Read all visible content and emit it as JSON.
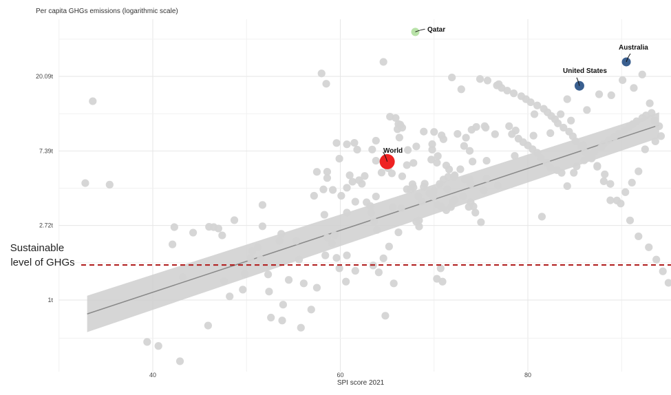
{
  "chart_data": {
    "type": "scatter",
    "title": "",
    "ylabel": "Per capita GHGs emissions (logarithmic scale)",
    "xlabel": "SPI score 2021",
    "x_ticks": [
      40,
      60,
      80
    ],
    "y_ticks": [
      1,
      2.72,
      7.39,
      20.09
    ],
    "y_tick_labels": [
      "1t",
      "2.72t",
      "7.39t",
      "20.09t"
    ],
    "xlim": [
      30,
      95
    ],
    "ylim": [
      0.34,
      50
    ],
    "y_scale": "log",
    "grid": true,
    "reference_line": {
      "value": 1.6,
      "label_line1": "Sustainable",
      "label_line2": "level of GHGs",
      "color": "#b22222"
    },
    "trend": {
      "x": [
        33,
        94
      ],
      "y": [
        0.83,
        10.45
      ],
      "band_lower": [
        0.65,
        8.8
      ],
      "band_upper": [
        1.06,
        12.4
      ],
      "band_color": "#cfcfcf",
      "line_color": "#888888"
    },
    "highlighted": [
      {
        "label": "World",
        "x": 65,
        "y": 6.4,
        "color": "#ee2222",
        "size": 11
      },
      {
        "label": "Qatar",
        "x": 68,
        "y": 36.5,
        "color": "#b8e2a8",
        "size": 6
      },
      {
        "label": "United States",
        "x": 85.5,
        "y": 17.7,
        "color": "#3a5f8f",
        "size": 7
      },
      {
        "label": "Australia",
        "x": 90.5,
        "y": 24.4,
        "color": "#3a5f8f",
        "size": 6.5
      }
    ],
    "point_color": "#d4d4d4",
    "points": [
      [
        33.6,
        14.4
      ],
      [
        32.8,
        4.8
      ],
      [
        35.4,
        4.7
      ],
      [
        39.4,
        0.57
      ],
      [
        40.6,
        0.54
      ],
      [
        42.9,
        0.44
      ],
      [
        43.2,
        1.36
      ],
      [
        44.3,
        2.47
      ],
      [
        42.3,
        2.66
      ],
      [
        42.1,
        2.11
      ],
      [
        46.0,
        2.67
      ],
      [
        46.5,
        2.66
      ],
      [
        48.7,
        2.92
      ],
      [
        47.0,
        2.61
      ],
      [
        47.4,
        2.38
      ],
      [
        47.6,
        1.29
      ],
      [
        45.9,
        0.71
      ],
      [
        48.2,
        1.05
      ],
      [
        49.8,
        1.42
      ],
      [
        49.6,
        1.15
      ],
      [
        50.4,
        1.75
      ],
      [
        50.6,
        1.93
      ],
      [
        51.5,
        1.73
      ],
      [
        51.2,
        2.03
      ],
      [
        51.7,
        2.69
      ],
      [
        51.7,
        3.58
      ],
      [
        52.3,
        1.41
      ],
      [
        52.4,
        1.12
      ],
      [
        53.7,
        2.43
      ],
      [
        53.5,
        2.21
      ],
      [
        52.6,
        0.79
      ],
      [
        53.9,
        0.94
      ],
      [
        53.8,
        0.76
      ],
      [
        54.5,
        1.31
      ],
      [
        55.3,
        2.21
      ],
      [
        55.6,
        1.72
      ],
      [
        55.8,
        0.69
      ],
      [
        56.1,
        1.25
      ],
      [
        56.9,
        0.88
      ],
      [
        57.5,
        1.18
      ],
      [
        57.2,
        4.05
      ],
      [
        58.6,
        5.14
      ],
      [
        59.2,
        4.38
      ],
      [
        58.6,
        2.31
      ],
      [
        59.1,
        2.14
      ],
      [
        59.6,
        1.76
      ],
      [
        59.4,
        2.39
      ],
      [
        60.7,
        3.23
      ],
      [
        58.3,
        3.14
      ],
      [
        60.7,
        1.82
      ],
      [
        58.4,
        1.82
      ],
      [
        59.9,
        1.53
      ],
      [
        60.6,
        1.28
      ],
      [
        61.6,
        1.48
      ],
      [
        63.9,
        2.56
      ],
      [
        63.6,
        2.86
      ],
      [
        63.3,
        3.22
      ],
      [
        63.5,
        1.59
      ],
      [
        64.6,
        1.75
      ],
      [
        64.8,
        0.81
      ],
      [
        64.1,
        1.45
      ],
      [
        65.2,
        2.05
      ],
      [
        65.6,
        3.47
      ],
      [
        66.2,
        2.48
      ],
      [
        66.5,
        3.43
      ],
      [
        67.1,
        4.42
      ],
      [
        67.2,
        7.48
      ],
      [
        66.2,
        10.6
      ],
      [
        66.3,
        8.84
      ],
      [
        66.1,
        9.89
      ],
      [
        65.7,
        1.25
      ],
      [
        67.5,
        4.42
      ],
      [
        68.1,
        2.86
      ],
      [
        68.4,
        2.91
      ],
      [
        68.4,
        2.68
      ],
      [
        68.7,
        3.74
      ],
      [
        68.3,
        4.03
      ],
      [
        69.0,
        4.76
      ],
      [
        70.0,
        4.32
      ],
      [
        70.4,
        3.59
      ],
      [
        70.7,
        3.51
      ],
      [
        70.7,
        1.53
      ],
      [
        70.3,
        1.33
      ],
      [
        70.9,
        1.28
      ],
      [
        71.3,
        3.34
      ],
      [
        71.8,
        3.48
      ],
      [
        72.0,
        3.73
      ],
      [
        71.4,
        4.42
      ],
      [
        72.2,
        3.83
      ],
      [
        73.1,
        4.03
      ],
      [
        73.7,
        3.49
      ],
      [
        73.9,
        4.74
      ],
      [
        73.9,
        3.71
      ],
      [
        74.2,
        3.51
      ],
      [
        74.4,
        3.23
      ],
      [
        73.3,
        5.04
      ],
      [
        72.8,
        5.78
      ],
      [
        70.4,
        6.9
      ],
      [
        71.3,
        6.08
      ],
      [
        71.6,
        5.77
      ],
      [
        72.1,
        5.24
      ],
      [
        73.8,
        5.06
      ],
      [
        74.1,
        6.41
      ],
      [
        75.6,
        6.48
      ],
      [
        75.0,
        2.84
      ],
      [
        75.3,
        4.35
      ],
      [
        76.8,
        4.64
      ],
      [
        75.6,
        5.11
      ],
      [
        73.2,
        7.9
      ],
      [
        73.8,
        7.4
      ],
      [
        75.5,
        10.1
      ],
      [
        76.5,
        9.25
      ],
      [
        75.4,
        10.3
      ],
      [
        74.9,
        19.4
      ],
      [
        76.9,
        18.1
      ],
      [
        72.9,
        16.9
      ],
      [
        71.9,
        19.8
      ],
      [
        69.8,
        8.09
      ],
      [
        70.8,
        9.11
      ],
      [
        70.3,
        6.31
      ],
      [
        69.7,
        6.58
      ],
      [
        69.8,
        7.52
      ],
      [
        68.9,
        9.58
      ],
      [
        68.1,
        7.85
      ],
      [
        67.8,
        6.29
      ],
      [
        67.1,
        6.11
      ],
      [
        66.6,
        10.1
      ],
      [
        66.4,
        10.5
      ],
      [
        65.9,
        11.5
      ],
      [
        65.3,
        11.7
      ],
      [
        64.6,
        24.4
      ],
      [
        63.8,
        8.48
      ],
      [
        63.4,
        7.53
      ],
      [
        63.8,
        6.48
      ],
      [
        61.8,
        7.52
      ],
      [
        61.5,
        8.24
      ],
      [
        59.6,
        8.22
      ],
      [
        58.5,
        18.2
      ],
      [
        58.0,
        20.9
      ],
      [
        60.7,
        8.08
      ],
      [
        59.9,
        6.66
      ],
      [
        58.2,
        4.41
      ],
      [
        57.5,
        5.58
      ],
      [
        58.6,
        5.59
      ],
      [
        61.0,
        5.33
      ],
      [
        61.3,
        4.89
      ],
      [
        62.3,
        4.76
      ],
      [
        62.0,
        4.99
      ],
      [
        62.6,
        5.28
      ],
      [
        60.7,
        4.51
      ],
      [
        60.1,
        4.05
      ],
      [
        61.6,
        3.74
      ],
      [
        62.8,
        3.71
      ],
      [
        63.2,
        3.53
      ],
      [
        63.8,
        4.01
      ],
      [
        64.4,
        5.53
      ],
      [
        65.1,
        5.86
      ],
      [
        65.5,
        5.47
      ],
      [
        66.6,
        5.26
      ],
      [
        67.7,
        4.73
      ],
      [
        67.8,
        4.53
      ],
      [
        68.9,
        4.56
      ],
      [
        69.5,
        4.2
      ],
      [
        69.9,
        4.01
      ],
      [
        70.6,
        4.75
      ],
      [
        71.0,
        5.04
      ],
      [
        71.5,
        5.22
      ],
      [
        72.2,
        5.33
      ],
      [
        70.0,
        9.54
      ],
      [
        71.0,
        8.65
      ],
      [
        72.5,
        9.29
      ],
      [
        73.4,
        8.83
      ],
      [
        74.0,
        9.82
      ],
      [
        74.5,
        10.2
      ],
      [
        75.7,
        19.0
      ],
      [
        78.0,
        10.3
      ],
      [
        78.7,
        9.72
      ],
      [
        78.3,
        9.26
      ],
      [
        79.0,
        8.71
      ],
      [
        79.5,
        8.31
      ],
      [
        80.0,
        7.96
      ],
      [
        80.5,
        7.56
      ],
      [
        81.0,
        7.21
      ],
      [
        81.4,
        6.71
      ],
      [
        82.0,
        6.31
      ],
      [
        82.4,
        5.91
      ],
      [
        83.1,
        5.71
      ],
      [
        83.6,
        5.51
      ],
      [
        84.2,
        4.61
      ],
      [
        84.9,
        5.51
      ],
      [
        85.2,
        6.01
      ],
      [
        86.0,
        6.51
      ],
      [
        86.5,
        6.91
      ],
      [
        87.1,
        7.31
      ],
      [
        87.8,
        7.71
      ],
      [
        88.1,
        8.11
      ],
      [
        88.6,
        8.51
      ],
      [
        89.2,
        8.91
      ],
      [
        89.7,
        9.31
      ],
      [
        90.3,
        9.71
      ],
      [
        90.8,
        10.2
      ],
      [
        91.2,
        10.6
      ],
      [
        91.6,
        11.0
      ],
      [
        92.2,
        11.5
      ],
      [
        92.6,
        11.9
      ],
      [
        93.2,
        12.3
      ],
      [
        93.5,
        11.1
      ],
      [
        94.0,
        10.3
      ],
      [
        94.2,
        9.02
      ],
      [
        93.6,
        8.4
      ],
      [
        92.5,
        7.55
      ],
      [
        91.8,
        5.62
      ],
      [
        91.1,
        4.83
      ],
      [
        90.4,
        4.25
      ],
      [
        89.5,
        3.8
      ],
      [
        88.8,
        4.75
      ],
      [
        88.2,
        5.4
      ],
      [
        87.4,
        6.05
      ],
      [
        86.8,
        6.68
      ],
      [
        86.1,
        7.27
      ],
      [
        85.7,
        7.83
      ],
      [
        85.1,
        8.41
      ],
      [
        84.8,
        8.99
      ],
      [
        84.4,
        9.57
      ],
      [
        83.8,
        10.1
      ],
      [
        83.2,
        10.7
      ],
      [
        82.9,
        11.3
      ],
      [
        82.5,
        11.8
      ],
      [
        82.1,
        12.4
      ],
      [
        81.7,
        13.0
      ],
      [
        81.0,
        13.6
      ],
      [
        80.3,
        14.2
      ],
      [
        79.8,
        14.8
      ],
      [
        79.3,
        15.4
      ],
      [
        78.5,
        16.0
      ],
      [
        77.8,
        16.6
      ],
      [
        77.2,
        17.2
      ],
      [
        76.7,
        17.8
      ],
      [
        80.7,
        12.1
      ],
      [
        84.2,
        14.8
      ],
      [
        86.3,
        12.8
      ],
      [
        87.6,
        15.8
      ],
      [
        88.9,
        15.6
      ],
      [
        90.1,
        19.1
      ],
      [
        91.3,
        17.2
      ],
      [
        92.2,
        20.6
      ],
      [
        93.0,
        14.0
      ],
      [
        81.5,
        3.06
      ],
      [
        78.6,
        6.92
      ],
      [
        80.6,
        9.07
      ],
      [
        82.4,
        9.38
      ],
      [
        83.5,
        12.1
      ],
      [
        84.6,
        11.1
      ],
      [
        85.9,
        7.99
      ],
      [
        86.8,
        6.92
      ],
      [
        87.4,
        5.98
      ],
      [
        88.1,
        4.92
      ],
      [
        88.8,
        3.81
      ],
      [
        89.9,
        3.65
      ],
      [
        90.9,
        2.91
      ],
      [
        91.8,
        2.35
      ],
      [
        92.9,
        2.03
      ],
      [
        93.7,
        1.72
      ],
      [
        94.4,
        1.47
      ],
      [
        95.0,
        1.26
      ],
      [
        95.5,
        1.08
      ]
    ]
  }
}
